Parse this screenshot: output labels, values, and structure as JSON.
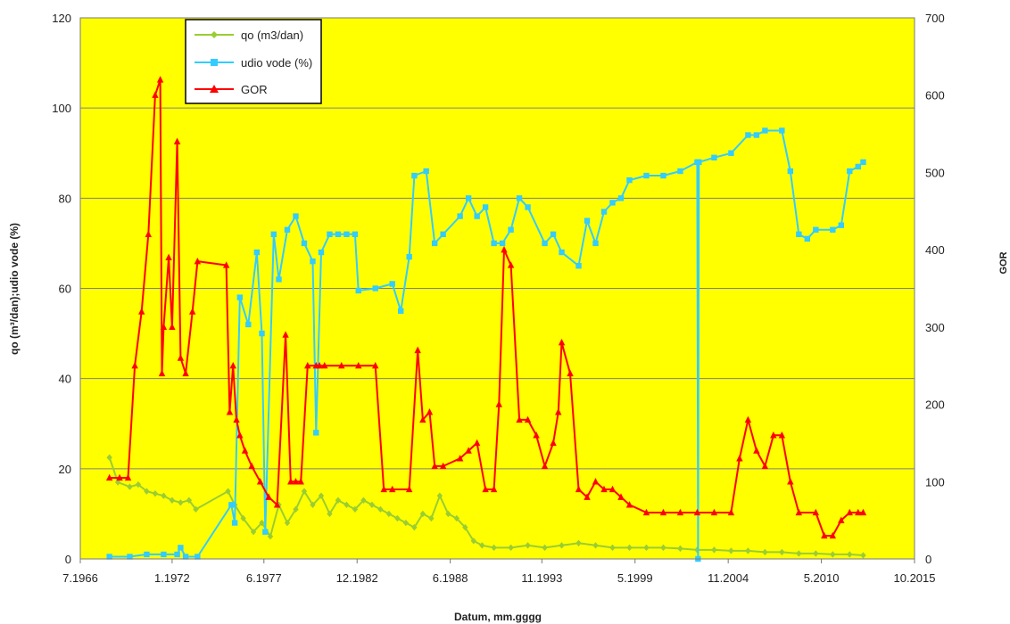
{
  "chart_data": {
    "type": "line",
    "xlabel": "Datum, mm.gggg",
    "ylabel": "qo (m³/dan);udio vode (%)",
    "y2label": "GOR",
    "xlim": [
      1966.58,
      2015.83
    ],
    "ylim": [
      0,
      120
    ],
    "y2lim": [
      0,
      700
    ],
    "x_tick_labels": [
      "7.1966",
      "1.1972",
      "6.1977",
      "12.1982",
      "6.1988",
      "11.1993",
      "5.1999",
      "11.2004",
      "5.2010",
      "10.2015"
    ],
    "x_tick_values": [
      1966.58,
      1972.0,
      1977.42,
      1982.92,
      1988.42,
      1993.83,
      1999.33,
      2004.83,
      2010.33,
      2015.83
    ],
    "y_ticks": [
      0,
      20,
      40,
      60,
      80,
      100,
      120
    ],
    "y2_ticks": [
      0,
      100,
      200,
      300,
      400,
      500,
      600,
      700
    ],
    "grid": "horizontal",
    "background": "#ffff00",
    "legend_position": "top-left",
    "series": [
      {
        "name": "qo (m3/dan)",
        "axis": "left",
        "color": "#9acd32",
        "marker": "diamond",
        "x": [
          1968.3,
          1968.8,
          1969.5,
          1970.0,
          1970.5,
          1971.0,
          1971.5,
          1972.0,
          1972.5,
          1973.0,
          1973.4,
          1975.3,
          1975.7,
          1976.2,
          1976.8,
          1977.3,
          1977.8,
          1978.3,
          1978.8,
          1979.3,
          1979.8,
          1980.3,
          1980.8,
          1981.3,
          1981.8,
          1982.3,
          1982.8,
          1983.3,
          1983.8,
          1984.3,
          1984.8,
          1985.3,
          1985.8,
          1986.3,
          1986.8,
          1987.3,
          1987.8,
          1988.3,
          1988.8,
          1989.3,
          1989.8,
          1990.3,
          1991.0,
          1992.0,
          1993.0,
          1994.0,
          1995.0,
          1996.0,
          1997.0,
          1998.0,
          1999.0,
          2000.0,
          2001.0,
          2002.0,
          2003.0,
          2004.0,
          2005.0,
          2006.0,
          2007.0,
          2008.0,
          2009.0,
          2010.0,
          2011.0,
          2012.0,
          2012.8
        ],
        "values": [
          22.5,
          17,
          16,
          16.5,
          15,
          14.5,
          14,
          13,
          12.5,
          13,
          11,
          15,
          12,
          9,
          6,
          8,
          5,
          12,
          8,
          11,
          15,
          12,
          14,
          10,
          13,
          12,
          11,
          13,
          12,
          11,
          10,
          9,
          8,
          7,
          10,
          9,
          14,
          10,
          9,
          7,
          4,
          3,
          2.5,
          2.5,
          3,
          2.5,
          3,
          3.5,
          3,
          2.5,
          2.5,
          2.5,
          2.5,
          2.3,
          2,
          2,
          1.8,
          1.8,
          1.5,
          1.5,
          1.2,
          1.2,
          1,
          1,
          0.8
        ]
      },
      {
        "name": "udio vode (%)",
        "axis": "left",
        "color": "#33ccff",
        "marker": "square",
        "x": [
          1968.3,
          1969.5,
          1970.5,
          1971.5,
          1972.3,
          1972.5,
          1972.8,
          1973.5,
          1975.5,
          1975.7,
          1976.0,
          1976.5,
          1977.0,
          1977.3,
          1977.5,
          1978.0,
          1978.3,
          1978.8,
          1979.3,
          1979.8,
          1980.3,
          1980.5,
          1980.8,
          1981.3,
          1981.8,
          1982.3,
          1982.8,
          1983.0,
          1984.0,
          1985.0,
          1985.5,
          1986.0,
          1986.3,
          1987.0,
          1987.5,
          1988.0,
          1989.0,
          1989.5,
          1990.0,
          1990.5,
          1991.0,
          1991.5,
          1992.0,
          1992.5,
          1993.0,
          1994.0,
          1994.5,
          1995.0,
          1996.0,
          1996.5,
          1997.0,
          1997.5,
          1998.0,
          1998.5,
          1999.0,
          2000.0,
          2001.0,
          2002.0,
          2003.0,
          2003.05,
          2003.1,
          2004.0,
          2005.0,
          2006.0,
          2006.5,
          2007.0,
          2008.0,
          2008.5,
          2009.0,
          2009.5,
          2010.0,
          2011.0,
          2011.5,
          2012.0,
          2012.5,
          2012.8
        ],
        "values": [
          0.5,
          0.5,
          1,
          1,
          1,
          2.5,
          0.5,
          0.5,
          12,
          8,
          58,
          52,
          68,
          50,
          6,
          72,
          62,
          73,
          76,
          70,
          66,
          28,
          68,
          72,
          72,
          72,
          72,
          59.5,
          60,
          61,
          55,
          67,
          85,
          86,
          70,
          72,
          76,
          80,
          76,
          78,
          70,
          70,
          73,
          80,
          78,
          70,
          72,
          68,
          65,
          75,
          70,
          77,
          79,
          80,
          84,
          85,
          85,
          86,
          88,
          0,
          88,
          89,
          90,
          94,
          94,
          95,
          95,
          86,
          72,
          71,
          73,
          73,
          74,
          86,
          87,
          88
        ]
      },
      {
        "name": "GOR",
        "axis": "right",
        "color": "#ff0000",
        "marker": "triangle",
        "x": [
          1968.3,
          1968.9,
          1969.4,
          1969.8,
          1970.2,
          1970.6,
          1971.0,
          1971.3,
          1971.4,
          1971.5,
          1971.8,
          1972.0,
          1972.3,
          1972.5,
          1972.8,
          1973.2,
          1973.5,
          1975.2,
          1975.4,
          1975.6,
          1975.8,
          1976.0,
          1976.3,
          1976.7,
          1977.2,
          1977.7,
          1978.2,
          1978.7,
          1979.0,
          1979.3,
          1979.6,
          1980.0,
          1980.5,
          1980.7,
          1981.0,
          1982.0,
          1983.0,
          1984.0,
          1984.5,
          1985.0,
          1986.0,
          1986.5,
          1986.8,
          1987.2,
          1987.5,
          1988.0,
          1989.0,
          1989.5,
          1990.0,
          1990.5,
          1991.0,
          1991.3,
          1991.6,
          1992.0,
          1992.5,
          1993.0,
          1993.5,
          1994.0,
          1994.5,
          1994.8,
          1995.0,
          1995.5,
          1996.0,
          1996.5,
          1997.0,
          1997.5,
          1998.0,
          1998.5,
          1999.0,
          2000.0,
          2001.0,
          2002.0,
          2003.0,
          2004.0,
          2005.0,
          2005.5,
          2006.0,
          2006.5,
          2007.0,
          2007.5,
          2008.0,
          2008.5,
          2009.0,
          2010.0,
          2010.5,
          2011.0,
          2011.5,
          2012.0,
          2012.5,
          2012.8
        ],
        "values": [
          105,
          105,
          105,
          250,
          320,
          420,
          600,
          620,
          240,
          300,
          390,
          300,
          540,
          260,
          240,
          320,
          385,
          380,
          190,
          250,
          180,
          160,
          140,
          120,
          100,
          80,
          70,
          290,
          100,
          100,
          100,
          250,
          250,
          250,
          250,
          250,
          250,
          250,
          90,
          90,
          90,
          270,
          180,
          190,
          120,
          120,
          130,
          140,
          150,
          90,
          90,
          200,
          400,
          380,
          180,
          180,
          160,
          120,
          150,
          190,
          280,
          240,
          90,
          80,
          100,
          90,
          90,
          80,
          70,
          60,
          60,
          60,
          60,
          60,
          60,
          130,
          180,
          140,
          120,
          160,
          160,
          100,
          60,
          60,
          30,
          30,
          50,
          60,
          60,
          60
        ]
      }
    ]
  }
}
